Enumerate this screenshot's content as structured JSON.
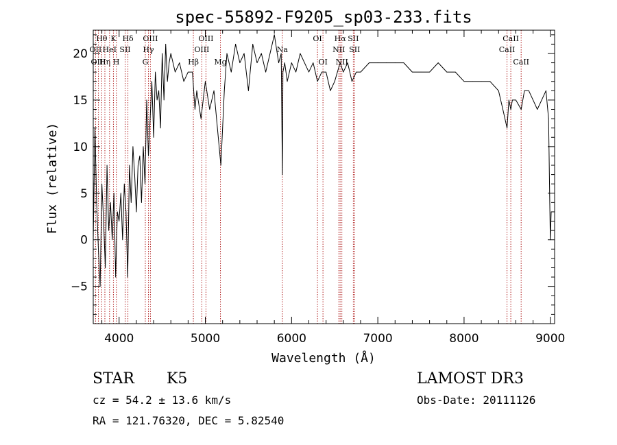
{
  "chart_data": {
    "type": "line",
    "title": "spec-55892-F9205_sp03-233.fits",
    "xlabel": "Wavelength (Å)",
    "ylabel": "Flux (relative)",
    "xlim": [
      3700,
      9050
    ],
    "ylim": [
      -9,
      22.5
    ],
    "xticks": [
      4000,
      5000,
      6000,
      7000,
      8000,
      9000
    ],
    "yticks": [
      -5,
      0,
      5,
      10,
      15,
      20
    ],
    "series": [
      {
        "x": [
          3700,
          3720,
          3740,
          3760,
          3780,
          3800,
          3820,
          3840,
          3860,
          3880,
          3900,
          3920,
          3940,
          3960,
          3980,
          4000,
          4020,
          4040,
          4060,
          4080,
          4100,
          4120,
          4140,
          4160,
          4180,
          4200,
          4220,
          4240,
          4260,
          4280,
          4300,
          4320,
          4340,
          4360,
          4380,
          4400,
          4420,
          4440,
          4460,
          4480,
          4500,
          4520,
          4540,
          4560,
          4580,
          4600,
          4650,
          4700,
          4750,
          4800,
          4850,
          4880,
          4900,
          4950,
          5000,
          5050,
          5100,
          5150,
          5180,
          5200,
          5220,
          5250,
          5300,
          5350,
          5400,
          5450,
          5500,
          5550,
          5600,
          5650,
          5700,
          5750,
          5800,
          5850,
          5880,
          5893,
          5900,
          5920,
          5950,
          6000,
          6050,
          6100,
          6150,
          6200,
          6250,
          6300,
          6350,
          6400,
          6450,
          6500,
          6563,
          6600,
          6650,
          6700,
          6750,
          6800,
          6900,
          7000,
          7100,
          7200,
          7300,
          7400,
          7500,
          7600,
          7700,
          7800,
          7900,
          8000,
          8100,
          8200,
          8300,
          8400,
          8450,
          8498,
          8520,
          8542,
          8560,
          8600,
          8662,
          8700,
          8750,
          8800,
          8850,
          8900,
          8950,
          8980,
          9000,
          9010
        ],
        "values": [
          0,
          12,
          4,
          -1,
          -5,
          6,
          2,
          -3,
          8,
          1,
          4,
          0,
          5,
          -4,
          3,
          2,
          5,
          0,
          6,
          3,
          -4,
          8,
          4,
          10,
          7,
          3,
          8,
          9,
          4,
          10,
          6,
          15,
          9,
          13,
          17,
          11,
          18,
          15,
          16,
          12,
          20,
          15,
          21,
          17,
          19,
          20,
          18,
          19,
          17,
          18,
          18,
          14,
          16,
          13,
          17,
          14,
          16,
          11,
          8,
          12,
          16,
          20,
          18,
          21,
          19,
          20,
          16,
          21,
          19,
          20,
          18,
          20,
          22,
          19,
          20,
          7,
          18,
          19,
          17,
          19,
          18,
          20,
          19,
          18,
          19,
          17,
          18,
          18,
          16,
          17,
          19,
          18,
          19,
          17,
          18,
          18,
          19,
          19,
          19,
          19,
          19,
          18,
          18,
          18,
          19,
          18,
          18,
          17,
          17,
          17,
          17,
          16,
          14,
          12,
          15,
          14,
          15,
          15,
          14,
          16,
          16,
          15,
          14,
          15,
          16,
          13,
          0,
          3
        ]
      }
    ],
    "lines": [
      {
        "name": "Hθ",
        "x": 3798,
        "row": 0
      },
      {
        "name": "OII",
        "x": 3727,
        "row": 1
      },
      {
        "name": "OIII",
        "x": 3760,
        "row": 2
      },
      {
        "name": "Hη",
        "x": 3835,
        "row": 2
      },
      {
        "name": "K",
        "x": 3934,
        "row": 0
      },
      {
        "name": "HeI",
        "x": 3889,
        "row": 1
      },
      {
        "name": "H",
        "x": 3968,
        "row": 2
      },
      {
        "name": "SII",
        "x": 4070,
        "row": 1
      },
      {
        "name": "Hδ",
        "x": 4102,
        "row": 0
      },
      {
        "name": "OIII",
        "x": 4363,
        "row": 0
      },
      {
        "name": "Hγ",
        "x": 4340,
        "row": 1
      },
      {
        "name": "G",
        "x": 4304,
        "row": 2
      },
      {
        "name": "Hβ",
        "x": 4861,
        "row": 2
      },
      {
        "name": "OIII",
        "x": 5007,
        "row": 0
      },
      {
        "name": "OIII",
        "x": 4959,
        "row": 1
      },
      {
        "name": "Mg",
        "x": 5175,
        "row": 2
      },
      {
        "name": "Na",
        "x": 5893,
        "row": 1
      },
      {
        "name": "OI",
        "x": 6300,
        "row": 0
      },
      {
        "name": "OI",
        "x": 6364,
        "row": 2
      },
      {
        "name": "Hα",
        "x": 6563,
        "row": 0
      },
      {
        "name": "NII",
        "x": 6548,
        "row": 1
      },
      {
        "name": "NII",
        "x": 6583,
        "row": 2
      },
      {
        "name": "SII",
        "x": 6716,
        "row": 0
      },
      {
        "name": "SII",
        "x": 6731,
        "row": 1
      },
      {
        "name": "CaII",
        "x": 8542,
        "row": 0
      },
      {
        "name": "CaII",
        "x": 8498,
        "row": 1
      },
      {
        "name": "CaII",
        "x": 8662,
        "row": 2
      }
    ]
  },
  "info": {
    "class_label": "STAR",
    "subclass": "K5",
    "survey": "LAMOST DR3",
    "cz": "cz = 54.2 ± 13.6 km/s",
    "obs_date": "Obs-Date: 20111126",
    "radec": "RA = 121.76320, DEC =   5.82540"
  }
}
